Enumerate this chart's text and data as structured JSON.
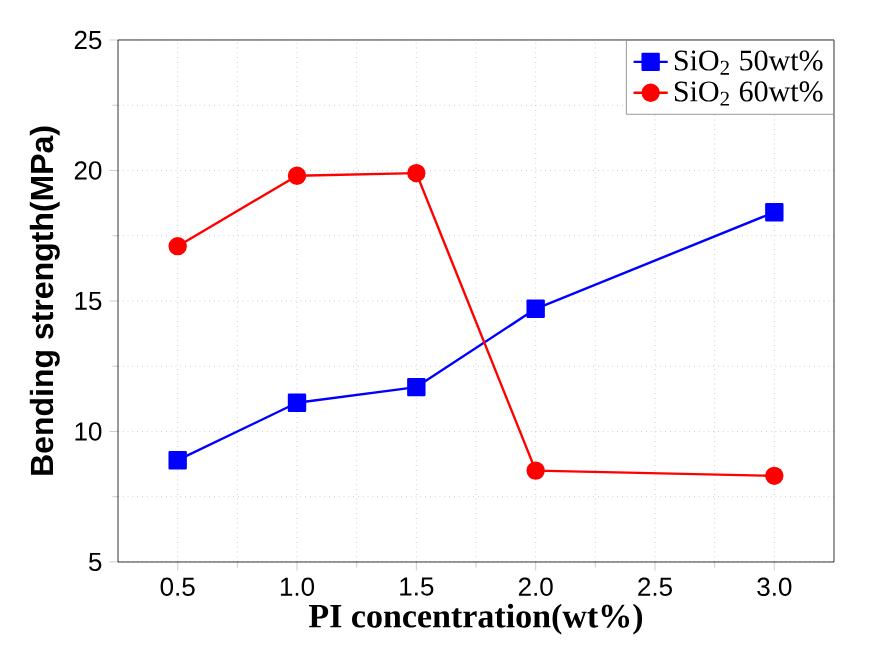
{
  "chart_data": {
    "type": "line",
    "xlabel": "PI concentration(wt%)",
    "ylabel": "Bending strength(MPa)",
    "x": [
      0.5,
      1.0,
      1.5,
      2.0,
      3.0
    ],
    "series": [
      {
        "name": "SiO$_{2}$ 50wt%",
        "color": "#0000ff",
        "marker": "square",
        "values": [
          8.9,
          11.1,
          11.7,
          14.7,
          18.4
        ]
      },
      {
        "name": "SiO$_{2}$ 60wt%",
        "color": "#ff0000",
        "marker": "circle",
        "values": [
          17.1,
          19.8,
          19.9,
          8.5,
          8.3
        ]
      }
    ],
    "xlim": [
      0.25,
      3.25
    ],
    "xticks": [
      {
        "value": 0.5,
        "label": "0.5"
      },
      {
        "value": 1.0,
        "label": "1.0"
      },
      {
        "value": 1.5,
        "label": "1.5"
      },
      {
        "value": 2.0,
        "label": "2.0"
      },
      {
        "value": 2.5,
        "label": "2.5"
      },
      {
        "value": 3.0,
        "label": "3.0"
      }
    ],
    "ylim": [
      5,
      25
    ],
    "yticks": [
      5,
      10,
      15,
      20,
      25
    ],
    "grid": true,
    "legend": "top right",
    "line_style": "solid"
  }
}
